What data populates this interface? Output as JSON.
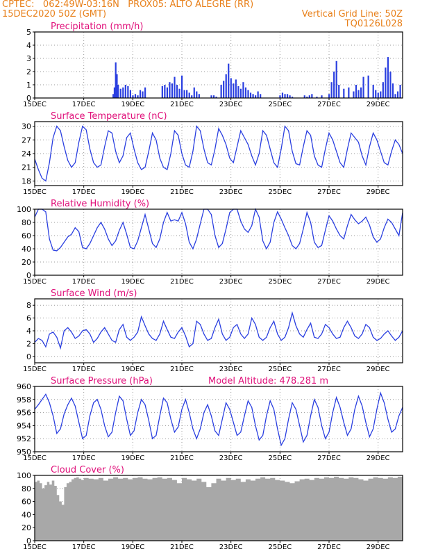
{
  "header": {
    "line1_left": "CPTEC:   062:49W-03:16N   PROX05: ALTO ALEGRE (RR)",
    "line2_left": "15DEC2020 50Z (GMT)",
    "line2_right": "Vertical Grid Line: 50Z",
    "line3_right": "TQ0126L028"
  },
  "colors": {
    "header": "#e8801a",
    "panel_title": "#e0107a",
    "series": "#2a3fe0",
    "cloud": "#a8a8a8",
    "grid": "#9a9a9a"
  },
  "x_axis": {
    "ticks": [
      "15DEC",
      "17DEC",
      "19DEC",
      "21DEC",
      "23DEC",
      "25DEC",
      "27DEC",
      "29DEC"
    ],
    "tick_days": [
      0,
      2,
      4,
      6,
      8,
      10,
      12,
      14
    ],
    "range_days": [
      0,
      15
    ]
  },
  "chart_data": [
    {
      "type": "bar",
      "title": "Precipitation (mm/h)",
      "ylim": [
        0,
        5
      ],
      "yticks": [
        "0",
        "1",
        "2",
        "3",
        "4",
        "5"
      ],
      "x_days": [
        3.2,
        3.25,
        3.3,
        3.35,
        3.4,
        3.5,
        3.6,
        3.7,
        3.8,
        3.9,
        4.0,
        4.1,
        4.2,
        4.3,
        4.4,
        4.5,
        5.2,
        5.3,
        5.4,
        5.5,
        5.6,
        5.7,
        5.8,
        5.9,
        6.0,
        6.1,
        6.2,
        6.3,
        6.4,
        6.5,
        6.6,
        6.7,
        7.2,
        7.3,
        7.4,
        7.6,
        7.7,
        7.8,
        7.9,
        8.0,
        8.1,
        8.2,
        8.3,
        8.4,
        8.5,
        8.6,
        8.7,
        8.8,
        8.9,
        9.0,
        9.1,
        9.2,
        10.0,
        10.1,
        10.2,
        10.3,
        10.4,
        10.5,
        11.0,
        11.1,
        11.2,
        11.3,
        11.5,
        11.7,
        12.0,
        12.1,
        12.2,
        12.3,
        12.4,
        12.6,
        12.8,
        13.0,
        13.1,
        13.2,
        13.3,
        13.4,
        13.6,
        13.8,
        13.9,
        14.0,
        14.1,
        14.2,
        14.3,
        14.4,
        14.5,
        14.6,
        14.7,
        14.8,
        14.9
      ],
      "values": [
        0.3,
        0.8,
        2.7,
        1.8,
        1.0,
        0.7,
        0.8,
        1.0,
        0.9,
        0.6,
        0.2,
        0.3,
        0.2,
        0.6,
        0.5,
        0.8,
        0.9,
        1.0,
        0.8,
        1.2,
        1.1,
        1.6,
        1.0,
        0.7,
        1.7,
        0.6,
        0.6,
        0.4,
        0.2,
        0.8,
        0.5,
        0.3,
        0.2,
        0.2,
        0.1,
        1.0,
        1.3,
        1.8,
        2.6,
        1.5,
        1.1,
        1.4,
        0.9,
        0.7,
        1.2,
        0.8,
        0.6,
        0.4,
        0.3,
        0.2,
        0.5,
        0.3,
        0.2,
        0.4,
        0.3,
        0.3,
        0.2,
        0.1,
        0.2,
        0.1,
        0.2,
        0.3,
        0.1,
        0.2,
        0.3,
        1.2,
        2.0,
        2.8,
        1.0,
        0.7,
        0.8,
        0.5,
        1.0,
        0.6,
        0.8,
        1.6,
        1.7,
        1.0,
        0.6,
        0.4,
        0.5,
        1.2,
        2.3,
        3.1,
        2.0,
        1.1,
        0.3,
        0.5,
        1.0
      ]
    },
    {
      "type": "line",
      "title": "Surface Temperature (nC)",
      "ylim": [
        17,
        31
      ],
      "yticks": [
        "18",
        "21",
        "24",
        "27",
        "30"
      ],
      "x_days": [
        0,
        0.15,
        0.3,
        0.45,
        0.6,
        0.75,
        0.9,
        1.05,
        1.2,
        1.35,
        1.5,
        1.65,
        1.8,
        1.95,
        2.1,
        2.25,
        2.4,
        2.55,
        2.7,
        2.85,
        3.0,
        3.15,
        3.3,
        3.45,
        3.6,
        3.75,
        3.9,
        4.05,
        4.2,
        4.35,
        4.5,
        4.65,
        4.8,
        4.95,
        5.1,
        5.25,
        5.4,
        5.55,
        5.7,
        5.85,
        6.0,
        6.15,
        6.3,
        6.45,
        6.6,
        6.75,
        6.9,
        7.05,
        7.2,
        7.35,
        7.5,
        7.65,
        7.8,
        7.95,
        8.1,
        8.25,
        8.4,
        8.55,
        8.7,
        8.85,
        9.0,
        9.15,
        9.3,
        9.45,
        9.6,
        9.75,
        9.9,
        10.05,
        10.2,
        10.35,
        10.5,
        10.65,
        10.8,
        10.95,
        11.1,
        11.25,
        11.4,
        11.55,
        11.7,
        11.85,
        12.0,
        12.15,
        12.3,
        12.45,
        12.6,
        12.75,
        12.9,
        13.05,
        13.2,
        13.35,
        13.5,
        13.65,
        13.8,
        13.95,
        14.1,
        14.25,
        14.4,
        14.55,
        14.7,
        14.85,
        15.0
      ],
      "values": [
        22.8,
        20.5,
        18.6,
        18.0,
        22.0,
        27.5,
        30.0,
        29.0,
        25.5,
        22.5,
        21.0,
        22.0,
        26.5,
        30.0,
        29.2,
        25.0,
        22.0,
        21.0,
        21.5,
        25.5,
        29.0,
        28.5,
        24.5,
        22.0,
        23.5,
        27.5,
        28.5,
        25.0,
        22.0,
        20.5,
        21.0,
        24.5,
        28.5,
        27.0,
        23.0,
        21.0,
        20.5,
        24.0,
        29.0,
        28.0,
        24.0,
        21.5,
        21.0,
        24.5,
        30.0,
        29.0,
        25.0,
        22.0,
        21.5,
        25.0,
        29.5,
        28.0,
        26.0,
        23.0,
        22.0,
        25.5,
        29.0,
        27.5,
        26.0,
        23.5,
        21.5,
        24.0,
        29.0,
        28.0,
        25.0,
        22.0,
        21.0,
        25.0,
        30.0,
        29.0,
        24.5,
        21.8,
        21.5,
        25.5,
        29.0,
        28.0,
        23.5,
        21.5,
        21.0,
        25.0,
        28.5,
        27.0,
        24.5,
        22.0,
        21.0,
        25.0,
        28.5,
        27.5,
        26.5,
        23.5,
        21.5,
        25.5,
        28.5,
        27.0,
        24.5,
        22.0,
        21.5,
        24.5,
        27.0,
        26.0,
        24.0
      ]
    },
    {
      "type": "line",
      "title": "Relative Humidity (%)",
      "ylim": [
        0,
        100
      ],
      "yticks": [
        "0",
        "20",
        "40",
        "60",
        "80",
        "100"
      ],
      "x_days": [
        0,
        0.15,
        0.3,
        0.45,
        0.6,
        0.75,
        0.9,
        1.05,
        1.2,
        1.35,
        1.5,
        1.65,
        1.8,
        1.95,
        2.1,
        2.25,
        2.4,
        2.55,
        2.7,
        2.85,
        3.0,
        3.15,
        3.3,
        3.45,
        3.6,
        3.75,
        3.9,
        4.05,
        4.2,
        4.35,
        4.5,
        4.65,
        4.8,
        4.95,
        5.1,
        5.25,
        5.4,
        5.55,
        5.7,
        5.85,
        6.0,
        6.15,
        6.3,
        6.45,
        6.6,
        6.75,
        6.9,
        7.05,
        7.2,
        7.35,
        7.5,
        7.65,
        7.8,
        7.95,
        8.1,
        8.25,
        8.4,
        8.55,
        8.7,
        8.85,
        9.0,
        9.15,
        9.3,
        9.45,
        9.6,
        9.75,
        9.9,
        10.05,
        10.2,
        10.35,
        10.5,
        10.65,
        10.8,
        10.95,
        11.1,
        11.25,
        11.4,
        11.55,
        11.7,
        11.85,
        12.0,
        12.15,
        12.3,
        12.45,
        12.6,
        12.75,
        12.9,
        13.05,
        13.2,
        13.35,
        13.5,
        13.65,
        13.8,
        13.95,
        14.1,
        14.25,
        14.4,
        14.55,
        14.7,
        14.85,
        15.0
      ],
      "values": [
        88,
        100,
        100,
        96,
        55,
        38,
        37,
        42,
        50,
        58,
        62,
        72,
        66,
        42,
        40,
        48,
        60,
        72,
        80,
        70,
        55,
        45,
        52,
        68,
        80,
        62,
        42,
        40,
        52,
        72,
        92,
        70,
        48,
        42,
        55,
        80,
        95,
        82,
        84,
        82,
        95,
        78,
        50,
        40,
        55,
        78,
        100,
        100,
        92,
        60,
        42,
        48,
        70,
        95,
        100,
        100,
        82,
        70,
        65,
        75,
        100,
        88,
        52,
        40,
        50,
        80,
        96,
        85,
        72,
        60,
        45,
        40,
        48,
        70,
        95,
        80,
        50,
        42,
        45,
        68,
        90,
        82,
        70,
        60,
        55,
        75,
        92,
        84,
        78,
        82,
        88,
        76,
        58,
        50,
        55,
        72,
        85,
        80,
        70,
        60,
        95
      ]
    },
    {
      "type": "line",
      "title": "Surface Wind (m/s)",
      "ylim": [
        -1,
        9
      ],
      "yticks": [
        "0",
        "2",
        "4",
        "6",
        "8"
      ],
      "x_days": [
        0,
        0.15,
        0.3,
        0.45,
        0.6,
        0.75,
        0.9,
        1.05,
        1.2,
        1.35,
        1.5,
        1.65,
        1.8,
        1.95,
        2.1,
        2.25,
        2.4,
        2.55,
        2.7,
        2.85,
        3.0,
        3.15,
        3.3,
        3.45,
        3.6,
        3.75,
        3.9,
        4.05,
        4.2,
        4.35,
        4.5,
        4.65,
        4.8,
        4.95,
        5.1,
        5.25,
        5.4,
        5.55,
        5.7,
        5.85,
        6.0,
        6.15,
        6.3,
        6.45,
        6.6,
        6.75,
        6.9,
        7.05,
        7.2,
        7.35,
        7.5,
        7.65,
        7.8,
        7.95,
        8.1,
        8.25,
        8.4,
        8.55,
        8.7,
        8.85,
        9.0,
        9.15,
        9.3,
        9.45,
        9.6,
        9.75,
        9.9,
        10.05,
        10.2,
        10.35,
        10.5,
        10.65,
        10.8,
        10.95,
        11.1,
        11.25,
        11.4,
        11.55,
        11.7,
        11.85,
        12.0,
        12.15,
        12.3,
        12.45,
        12.6,
        12.75,
        12.9,
        13.05,
        13.2,
        13.35,
        13.5,
        13.65,
        13.8,
        13.95,
        14.1,
        14.25,
        14.4,
        14.55,
        14.7,
        14.85,
        15.0
      ],
      "values": [
        2.2,
        2.8,
        2.5,
        1.5,
        3.5,
        3.8,
        3.0,
        1.3,
        4.0,
        4.5,
        3.8,
        2.8,
        3.2,
        4.0,
        4.2,
        3.5,
        2.2,
        2.8,
        3.8,
        4.5,
        3.5,
        2.5,
        2.2,
        4.2,
        5.0,
        3.0,
        2.5,
        3.0,
        3.8,
        6.2,
        4.8,
        3.5,
        2.8,
        2.5,
        3.5,
        5.5,
        4.2,
        3.0,
        2.8,
        3.8,
        4.5,
        3.2,
        1.5,
        2.0,
        5.5,
        5.0,
        3.5,
        2.5,
        2.8,
        4.5,
        5.8,
        3.5,
        2.5,
        3.0,
        4.5,
        5.0,
        3.5,
        2.8,
        3.5,
        6.0,
        5.0,
        3.0,
        2.5,
        3.0,
        4.5,
        5.5,
        3.5,
        2.5,
        3.0,
        4.5,
        6.8,
        4.8,
        3.5,
        3.0,
        4.2,
        5.2,
        3.0,
        2.8,
        3.5,
        5.0,
        4.5,
        3.5,
        2.8,
        3.0,
        4.5,
        5.5,
        4.5,
        3.2,
        2.8,
        3.5,
        5.0,
        4.5,
        3.0,
        2.5,
        2.8,
        3.5,
        4.0,
        3.2,
        2.5,
        3.0,
        4.0
      ]
    },
    {
      "type": "line",
      "title": "Surface Pressure (hPa)",
      "annotation": "Model Altitude: 478.281  m",
      "ylim": [
        950,
        960
      ],
      "yticks": [
        "950",
        "952",
        "954",
        "956",
        "958",
        "960"
      ],
      "x_days": [
        0,
        0.15,
        0.3,
        0.45,
        0.6,
        0.75,
        0.9,
        1.05,
        1.2,
        1.35,
        1.5,
        1.65,
        1.8,
        1.95,
        2.1,
        2.25,
        2.4,
        2.55,
        2.7,
        2.85,
        3.0,
        3.15,
        3.3,
        3.45,
        3.6,
        3.75,
        3.9,
        4.05,
        4.2,
        4.35,
        4.5,
        4.65,
        4.8,
        4.95,
        5.1,
        5.25,
        5.4,
        5.55,
        5.7,
        5.85,
        6.0,
        6.15,
        6.3,
        6.45,
        6.6,
        6.75,
        6.9,
        7.05,
        7.2,
        7.35,
        7.5,
        7.65,
        7.8,
        7.95,
        8.1,
        8.25,
        8.4,
        8.55,
        8.7,
        8.85,
        9.0,
        9.15,
        9.3,
        9.45,
        9.6,
        9.75,
        9.9,
        10.05,
        10.2,
        10.35,
        10.5,
        10.65,
        10.8,
        10.95,
        11.1,
        11.25,
        11.4,
        11.55,
        11.7,
        11.85,
        12.0,
        12.15,
        12.3,
        12.45,
        12.6,
        12.75,
        12.9,
        13.05,
        13.2,
        13.35,
        13.5,
        13.65,
        13.8,
        13.95,
        14.1,
        14.25,
        14.4,
        14.55,
        14.7,
        14.85,
        15.0
      ],
      "values": [
        956.5,
        957.2,
        958.0,
        958.8,
        957.5,
        955.5,
        952.8,
        953.5,
        955.8,
        957.2,
        958.2,
        957.0,
        954.5,
        952.0,
        952.5,
        955.5,
        957.5,
        958.0,
        956.5,
        954.0,
        952.3,
        953.0,
        956.0,
        958.5,
        957.8,
        955.0,
        952.5,
        953.2,
        956.0,
        958.0,
        957.2,
        954.8,
        952.0,
        952.5,
        955.5,
        958.2,
        957.5,
        955.0,
        953.0,
        953.8,
        956.5,
        958.0,
        956.0,
        953.5,
        952.0,
        953.5,
        956.0,
        957.2,
        955.5,
        953.2,
        952.5,
        955.0,
        957.5,
        956.5,
        954.5,
        952.5,
        953.0,
        955.5,
        957.8,
        956.8,
        954.0,
        951.8,
        952.5,
        955.5,
        957.8,
        956.5,
        953.5,
        951.0,
        952.0,
        955.0,
        957.5,
        956.5,
        954.0,
        951.5,
        952.5,
        955.5,
        958.0,
        956.8,
        954.0,
        952.0,
        953.0,
        956.0,
        958.3,
        956.8,
        954.5,
        952.5,
        953.5,
        956.5,
        958.5,
        957.0,
        954.5,
        952.3,
        953.5,
        956.5,
        959.0,
        957.5,
        955.0,
        953.0,
        953.5,
        955.5,
        956.8
      ]
    },
    {
      "type": "area",
      "title": "Cloud Cover (%)",
      "ylim": [
        0,
        100
      ],
      "yticks": [
        "0",
        "20",
        "40",
        "60",
        "80",
        "100"
      ],
      "x_days": [
        0,
        0.1,
        0.2,
        0.3,
        0.4,
        0.5,
        0.6,
        0.7,
        0.8,
        0.9,
        1.0,
        1.1,
        1.2,
        1.3,
        1.4,
        1.5,
        1.6,
        1.7,
        1.8,
        1.9,
        2.0,
        2.2,
        2.4,
        2.6,
        2.8,
        3.0,
        3.2,
        3.4,
        3.6,
        3.8,
        4.0,
        4.2,
        4.4,
        4.6,
        4.8,
        5.0,
        5.2,
        5.4,
        5.6,
        5.8,
        6.0,
        6.2,
        6.4,
        6.6,
        6.8,
        7.0,
        7.2,
        7.4,
        7.6,
        7.8,
        8.0,
        8.2,
        8.4,
        8.6,
        8.8,
        9.0,
        9.2,
        9.4,
        9.6,
        9.8,
        10.0,
        10.2,
        10.4,
        10.6,
        10.8,
        11.0,
        11.2,
        11.4,
        11.6,
        11.8,
        12.0,
        12.2,
        12.4,
        12.6,
        12.8,
        13.0,
        13.2,
        13.4,
        13.6,
        13.8,
        14.0,
        14.2,
        14.4,
        14.6,
        14.8,
        15.0
      ],
      "values": [
        90,
        92,
        88,
        80,
        85,
        90,
        86,
        92,
        84,
        70,
        60,
        55,
        82,
        88,
        90,
        94,
        96,
        97,
        95,
        93,
        96,
        95,
        94,
        96,
        92,
        95,
        97,
        95,
        96,
        94,
        96,
        97,
        95,
        94,
        96,
        97,
        95,
        96,
        93,
        88,
        96,
        94,
        92,
        95,
        90,
        82,
        88,
        95,
        92,
        96,
        93,
        95,
        90,
        94,
        92,
        95,
        97,
        95,
        96,
        93,
        92,
        90,
        88,
        91,
        94,
        95,
        93,
        96,
        95,
        97,
        96,
        98,
        96,
        95,
        97,
        96,
        94,
        92,
        95,
        97,
        96,
        95,
        97,
        96,
        98,
        97
      ]
    }
  ]
}
